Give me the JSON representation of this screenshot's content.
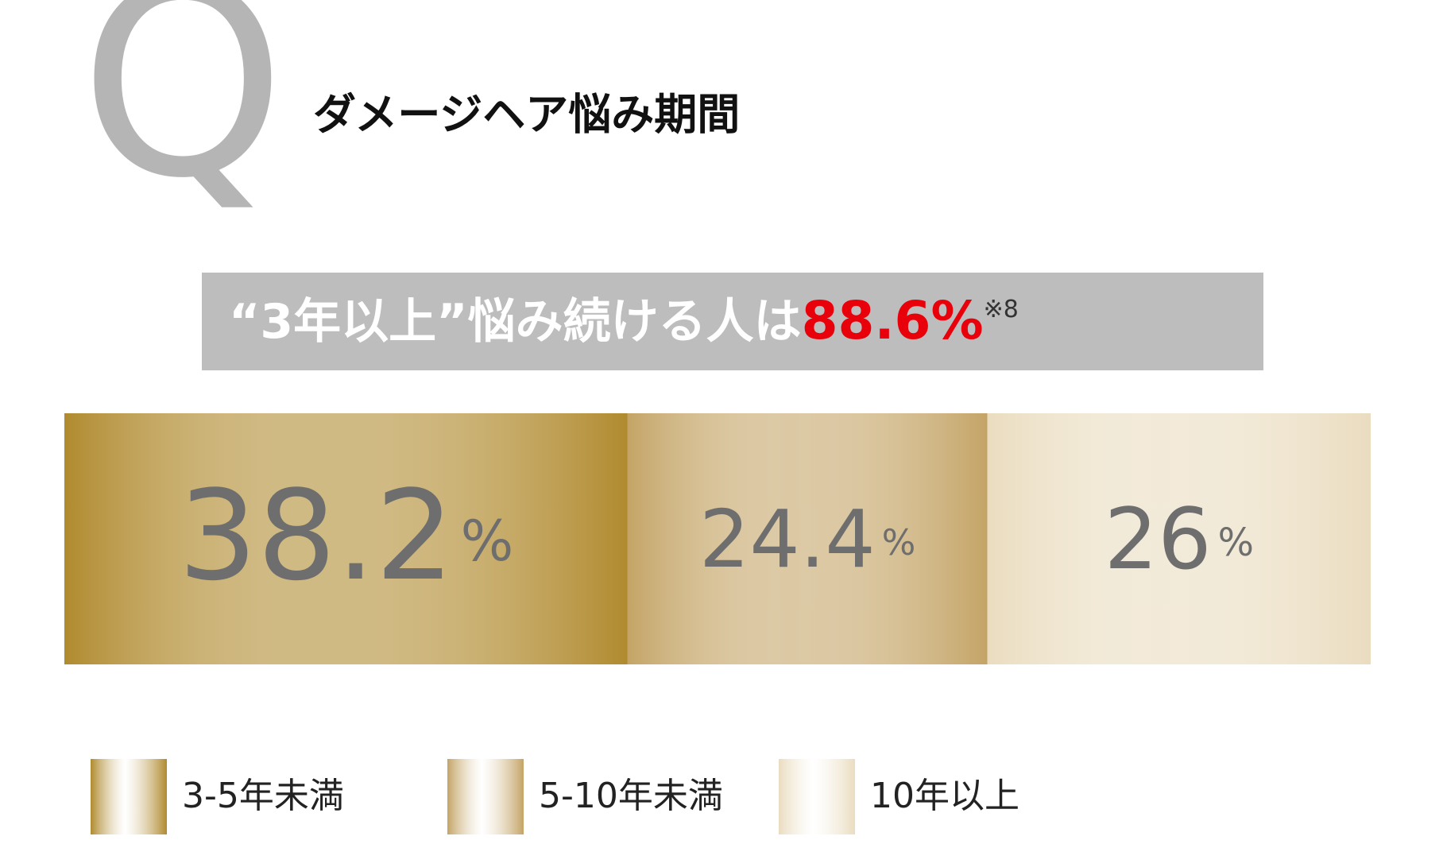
{
  "header": {
    "icon": "Q",
    "title": "ダメージヘア悩み期間"
  },
  "headline": {
    "text": "“3年以上”悩み続ける人は",
    "highlight": "88.6%",
    "note": "※8"
  },
  "chart_data": {
    "type": "stacked-bar",
    "series": [
      {
        "name": "3-5年未満",
        "color": "#b08a2e",
        "values": [
          38.2
        ],
        "value_labels": [
          "38.2%"
        ]
      },
      {
        "name": "5-10年未満",
        "color": "#c4a466",
        "values": [
          24.4
        ],
        "value_labels": [
          "24.4%"
        ]
      },
      {
        "name": "10年以上",
        "color": "#eadcbf",
        "values": [
          26
        ],
        "value_labels": [
          "26%"
        ]
      }
    ]
  }
}
